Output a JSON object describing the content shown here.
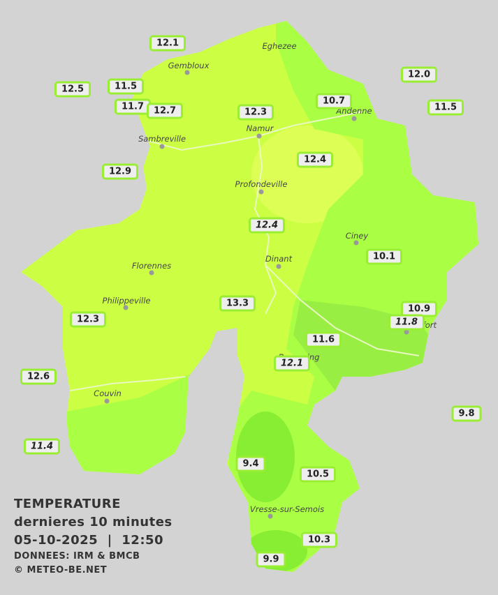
{
  "towns": [
    "Eghezee",
    "Gembloux",
    "Andenne",
    "Namur",
    "Sambreville",
    "Profondeville",
    "Ciney",
    "Dinant",
    "Florennes",
    "Philippeville",
    "Rochefort",
    "Beauraing",
    "Couvin",
    "Vresse-sur-Semois"
  ],
  "stations": [
    "12.1",
    "12.5",
    "11.5",
    "11.7",
    "12.7",
    "12.3",
    "10.7",
    "12.0",
    "11.5",
    "12.9",
    "12.4",
    "12.4",
    "10.1",
    "13.3",
    "12.3",
    "10.9",
    "11.8",
    "11.6",
    "12.1",
    "12.6",
    "9.8",
    "11.4",
    "9.4",
    "10.5",
    "10.3",
    "9.9"
  ],
  "legend": {
    "title": "TEMPERATURE",
    "subtitle": "dernieres 10 minutes",
    "datetime": "05-10-2025  |  12:50",
    "source": "DONNEES: IRM & BMCB",
    "copyright": "© METEO-BE.NET"
  }
}
